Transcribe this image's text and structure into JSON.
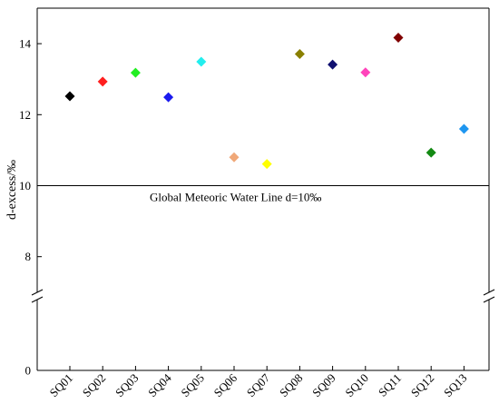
{
  "chart_data": {
    "type": "scatter",
    "marker": "diamond",
    "categories": [
      "SQ01",
      "SQ02",
      "SQ03",
      "SQ04",
      "SQ05",
      "SQ06",
      "SQ07",
      "SQ08",
      "SQ09",
      "SQ10",
      "SQ11",
      "SQ12",
      "SQ13"
    ],
    "values": [
      12.52,
      12.93,
      13.18,
      12.49,
      13.49,
      10.8,
      10.61,
      13.71,
      13.41,
      13.19,
      14.17,
      10.93,
      11.6
    ],
    "colors": [
      "#000000",
      "#ff1f1f",
      "#22ee22",
      "#1a1aee",
      "#22eeee",
      "#f0a878",
      "#ffff00",
      "#8a8000",
      "#101070",
      "#ff44bb",
      "#800000",
      "#138a13",
      "#1e96f0"
    ],
    "ylabel": "d-excess/‰",
    "xlabel": "",
    "ylim_upper": [
      7,
      15
    ],
    "ylim_lower_start": 0,
    "yaxis_broken": true,
    "yticks": [
      0,
      8,
      10,
      12,
      14
    ],
    "reference_line": {
      "value": 10,
      "label": "Global Meteoric Water Line d=10‰"
    },
    "grid": false,
    "legend": "none"
  }
}
